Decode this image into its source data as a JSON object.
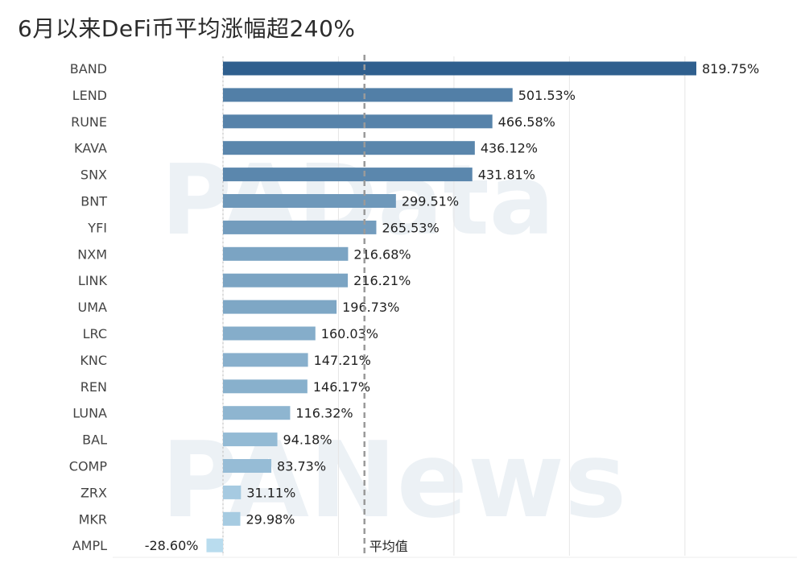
{
  "title": "6月以来DeFi币平均涨幅超240%",
  "watermarks": [
    "PAData",
    "PANews"
  ],
  "colors": {
    "bar_dark": "#2f5f8e",
    "bar_light": "#b9dcee",
    "grid": "#e6e6e6",
    "avg_line": "#9a9a9a",
    "text": "#222222",
    "label_text": "#444444"
  },
  "chart_data": {
    "type": "bar",
    "orientation": "horizontal",
    "title": "6月以来DeFi币平均涨幅超240%",
    "categories": [
      "BAND",
      "LEND",
      "RUNE",
      "KAVA",
      "SNX",
      "BNT",
      "YFI",
      "NXM",
      "LINK",
      "UMA",
      "LRC",
      "KNC",
      "REN",
      "LUNA",
      "BAL",
      "COMP",
      "ZRX",
      "MKR",
      "AMPL"
    ],
    "values": [
      819.75,
      501.53,
      466.58,
      436.12,
      431.81,
      299.51,
      265.53,
      216.68,
      216.21,
      196.73,
      160.03,
      147.21,
      146.17,
      116.32,
      94.18,
      83.73,
      31.11,
      29.98,
      -28.6
    ],
    "value_labels": [
      "819.75%",
      "501.53%",
      "466.58%",
      "436.12%",
      "431.81%",
      "299.51%",
      "265.53%",
      "216.68%",
      "216.21%",
      "196.73%",
      "160.03%",
      "147.21%",
      "146.17%",
      "116.32%",
      "94.18%",
      "83.73%",
      "31.11%",
      "29.98%",
      "-28.60%"
    ],
    "xlim": [
      -150,
      850
    ],
    "reference_line": {
      "label": "平均值",
      "value": 245
    },
    "grid": true,
    "legend": "none"
  }
}
